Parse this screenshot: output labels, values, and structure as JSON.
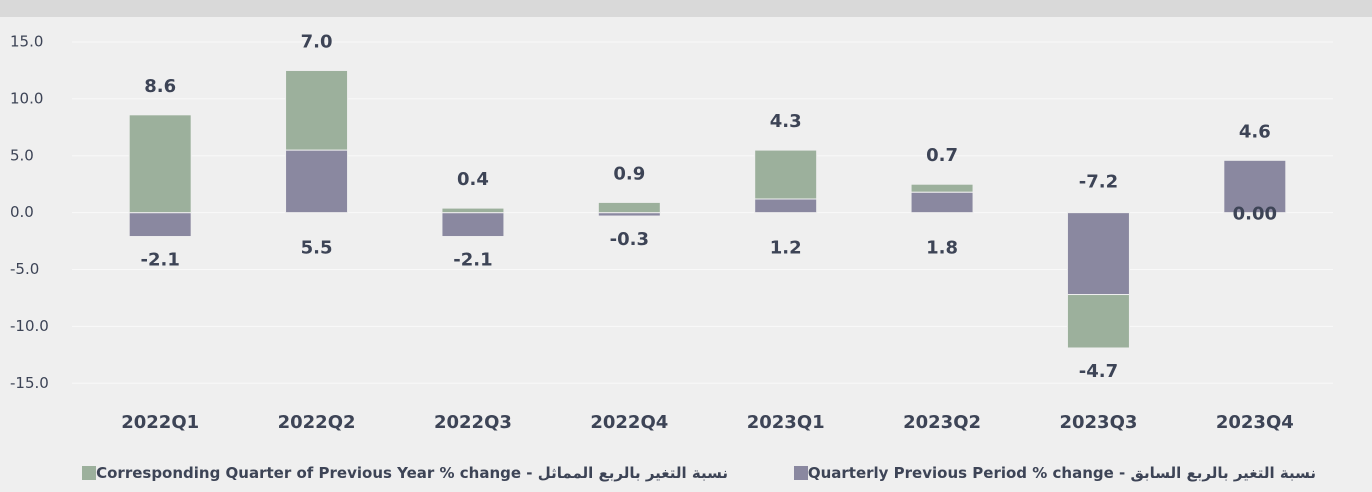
{
  "chart_data": {
    "type": "stacked_bar",
    "categories": [
      "2022Q1",
      "2022Q2",
      "2022Q3",
      "2022Q4",
      "2023Q1",
      "2023Q2",
      "2023Q3",
      "2023Q4"
    ],
    "series": [
      {
        "name": "نسبة التغير بالربع السابق - Quarterly  Previous Period % change",
        "color": "#8a88a0",
        "values": [
          -2.1,
          5.5,
          -2.1,
          -0.3,
          1.2,
          1.8,
          -7.2,
          4.6
        ],
        "value_labels": [
          "-2.1",
          "5.5",
          "-2.1",
          "-0.3",
          "1.2",
          "1.8",
          "-7.2",
          "4.6"
        ]
      },
      {
        "name": "نسبة التغير  بالربع المماثل - Corresponding Quarter of Previous Year  % change",
        "color": "#9cb09c",
        "values": [
          8.6,
          7.0,
          0.4,
          0.9,
          4.3,
          0.7,
          -4.7,
          0
        ],
        "value_labels": [
          "8.6",
          "7.0",
          "0.4",
          "0.9",
          "4.3",
          "0.7",
          "-4.7",
          "0.00"
        ]
      }
    ],
    "ylim": [
      -17,
      17.2
    ],
    "yticks": [
      {
        "value": 15,
        "label": "15.0"
      },
      {
        "value": 10,
        "label": "10.0"
      },
      {
        "value": 5,
        "label": "5.0"
      },
      {
        "value": 0,
        "label": "0.0"
      },
      {
        "value": -5,
        "label": "-5.0"
      },
      {
        "value": -10,
        "label": "-10.0"
      },
      {
        "value": -15,
        "label": "-15.0"
      }
    ],
    "grid": true
  }
}
